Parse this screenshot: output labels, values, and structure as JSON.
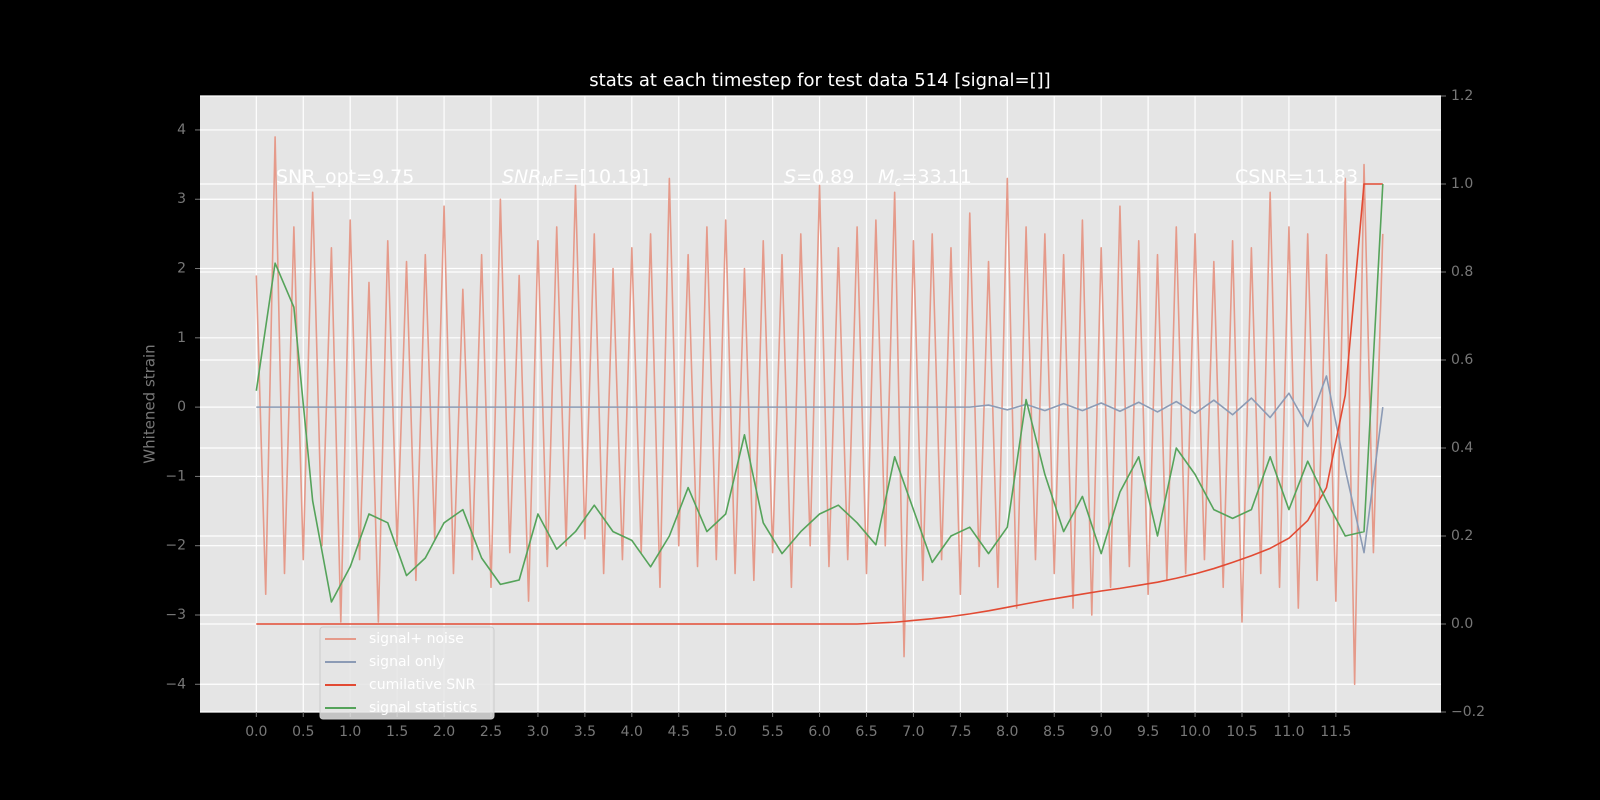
{
  "chart_data": {
    "type": "line",
    "title": "stats at each timestep for test data 514 [signal=[]]",
    "y_label": "Whitened strain",
    "annotations": [
      {
        "text": "SNR_opt=9.75"
      },
      {
        "text": "SNR",
        "sub": "M",
        "rest": "F=[10.19]"
      },
      {
        "text": "S",
        "rest": "=0.89"
      },
      {
        "text": "M",
        "sub": "c",
        "rest": "=33.11"
      },
      {
        "text": "CSNR=11.83"
      }
    ],
    "xlim": [
      -0.6,
      12.62
    ],
    "xticks": [
      {
        "value": 0,
        "label": "0.0"
      },
      0.5,
      {
        "value": 1,
        "label": "1.0"
      },
      1.5,
      {
        "value": 2,
        "label": "2.0"
      },
      2.5,
      {
        "value": 3,
        "label": "3.0"
      },
      3.5,
      {
        "value": 4,
        "label": "4.0"
      },
      4.5,
      {
        "value": 5,
        "label": "5.0"
      },
      5.5,
      {
        "value": 6,
        "label": "6.0"
      },
      6.5,
      {
        "value": 7,
        "label": "7.0"
      },
      7.5,
      {
        "value": 8,
        "label": "8.0"
      },
      8.5,
      {
        "value": 9,
        "label": "9.0"
      },
      9.5,
      {
        "value": 10,
        "label": "10.0"
      },
      10.5,
      {
        "value": 11,
        "label": "11.0"
      },
      11.5
    ],
    "ylim": [
      -4.4,
      4.49
    ],
    "yticks": [
      {
        "value": -4,
        "label": "−4"
      },
      {
        "value": -3,
        "label": "−3"
      },
      {
        "value": -2,
        "label": "−2"
      },
      {
        "value": -1,
        "label": "−1"
      },
      0,
      1,
      2,
      3,
      4
    ],
    "y2lim": [
      -0.2,
      1.2
    ],
    "y2ticks": [
      {
        "value": -0.2,
        "label": "−0.2"
      },
      {
        "value": 0,
        "label": "0.0"
      },
      0.2,
      0.4,
      0.6,
      0.8,
      {
        "value": 1,
        "label": "1.0"
      },
      1.2
    ],
    "grid": true,
    "legend": "lower left",
    "series": [
      {
        "name": "signal+ noise",
        "color": "#e59a8a",
        "x": [
          0,
          0.1,
          0.2,
          0.3,
          0.4,
          0.5,
          0.6,
          0.7,
          0.8,
          0.9,
          1,
          1.1,
          1.2,
          1.3,
          1.4,
          1.5,
          1.6,
          1.7,
          1.8,
          1.9,
          2,
          2.1,
          2.2,
          2.3,
          2.4,
          2.5,
          2.6,
          2.7,
          2.8,
          2.9,
          3,
          3.1,
          3.2,
          3.3,
          3.4,
          3.5,
          3.6,
          3.7,
          3.8,
          3.9,
          4,
          4.1,
          4.2,
          4.3,
          4.4,
          4.5,
          4.6,
          4.7,
          4.8,
          4.9,
          5,
          5.1,
          5.2,
          5.3,
          5.4,
          5.5,
          5.6,
          5.7,
          5.8,
          5.9,
          6,
          6.1,
          6.2,
          6.3,
          6.4,
          6.5,
          6.6,
          6.7,
          6.8,
          6.9,
          7,
          7.1,
          7.2,
          7.3,
          7.4,
          7.5,
          7.6,
          7.7,
          7.8,
          7.9,
          8,
          8.1,
          8.2,
          8.3,
          8.4,
          8.5,
          8.6,
          8.7,
          8.8,
          8.9,
          9,
          9.1,
          9.2,
          9.3,
          9.4,
          9.5,
          9.6,
          9.7,
          9.8,
          9.9,
          10,
          10.1,
          10.2,
          10.3,
          10.4,
          10.5,
          10.6,
          10.7,
          10.8,
          10.9,
          11,
          11.1,
          11.2,
          11.3,
          11.4,
          11.5,
          11.6,
          11.7,
          11.8,
          11.9,
          12
        ],
        "values": [
          1.9,
          -2.7,
          3.9,
          -2.4,
          2.6,
          -2.2,
          3.1,
          -2.0,
          2.3,
          -3.1,
          2.7,
          -2.2,
          1.8,
          -3.1,
          2.4,
          -2.0,
          2.1,
          -2.5,
          2.2,
          -1.9,
          2.9,
          -2.4,
          1.7,
          -2.2,
          2.2,
          -2.6,
          3.0,
          -2.1,
          1.9,
          -2.8,
          2.4,
          -2.3,
          2.6,
          -2.0,
          3.2,
          -1.9,
          2.5,
          -2.4,
          2.0,
          -2.2,
          2.3,
          -2.1,
          2.5,
          -2.6,
          3.3,
          -2.0,
          2.2,
          -2.3,
          2.6,
          -2.2,
          2.7,
          -2.4,
          2.0,
          -2.5,
          2.4,
          -2.1,
          2.2,
          -2.6,
          2.5,
          -2.0,
          3.2,
          -2.3,
          2.3,
          -2.2,
          2.6,
          -2.4,
          2.7,
          -2.0,
          3.1,
          -3.6,
          2.4,
          -2.5,
          2.5,
          -2.2,
          2.3,
          -2.7,
          2.8,
          -2.3,
          2.1,
          -2.6,
          3.3,
          -2.9,
          2.6,
          -2.2,
          2.5,
          -2.4,
          2.2,
          -2.9,
          2.7,
          -3.0,
          2.3,
          -2.6,
          2.9,
          -2.3,
          2.4,
          -2.7,
          2.2,
          -2.5,
          2.6,
          -2.4,
          2.5,
          -2.2,
          2.1,
          -2.6,
          2.4,
          -3.1,
          2.3,
          -2.4,
          3.1,
          -2.6,
          2.6,
          -2.9,
          2.5,
          -2.5,
          2.2,
          -2.8,
          3.3,
          -4.0,
          3.5,
          -2.1,
          2.5
        ]
      },
      {
        "name": "signal only",
        "color": "#8c9bb5",
        "x": [
          0,
          0.2,
          0.4,
          0.6,
          0.8,
          1,
          1.2,
          1.4,
          1.6,
          1.8,
          2,
          2.2,
          2.4,
          2.6,
          2.8,
          3,
          3.2,
          3.4,
          3.6,
          3.8,
          4,
          4.2,
          4.4,
          4.6,
          4.8,
          5,
          5.2,
          5.4,
          5.6,
          5.8,
          6,
          6.2,
          6.4,
          6.6,
          6.8,
          7,
          7.2,
          7.4,
          7.6,
          7.8,
          8,
          8.2,
          8.4,
          8.6,
          8.8,
          9,
          9.2,
          9.4,
          9.6,
          9.8,
          10,
          10.2,
          10.4,
          10.6,
          10.8,
          11,
          11.2,
          11.4,
          11.6,
          11.8,
          12
        ],
        "values": [
          0,
          0,
          0,
          0,
          0,
          0,
          0,
          0,
          0,
          0,
          0,
          0,
          0,
          0,
          0,
          0,
          0,
          0,
          0,
          0,
          0,
          0,
          0,
          0,
          0,
          0,
          0,
          0,
          0,
          0,
          0,
          0,
          0,
          0,
          0,
          0,
          0,
          0,
          0,
          0.03,
          -0.04,
          0.04,
          -0.05,
          0.05,
          -0.05,
          0.06,
          -0.06,
          0.07,
          -0.07,
          0.08,
          -0.09,
          0.1,
          -0.11,
          0.13,
          -0.15,
          0.2,
          -0.28,
          0.45,
          -0.9,
          -2.1,
          0
        ]
      },
      {
        "name": "cumilative SNR",
        "color": "#e24a33",
        "axis": "y2",
        "x": [
          0,
          0.2,
          0.4,
          0.6,
          0.8,
          1,
          1.2,
          1.4,
          1.6,
          1.8,
          2,
          2.2,
          2.4,
          2.6,
          2.8,
          3,
          3.2,
          3.4,
          3.6,
          3.8,
          4,
          4.2,
          4.4,
          4.6,
          4.8,
          5,
          5.2,
          5.4,
          5.6,
          5.8,
          6,
          6.2,
          6.4,
          6.6,
          6.8,
          7,
          7.2,
          7.4,
          7.6,
          7.8,
          8,
          8.2,
          8.4,
          8.6,
          8.8,
          9,
          9.2,
          9.4,
          9.6,
          9.8,
          10,
          10.2,
          10.4,
          10.6,
          10.8,
          11,
          11.2,
          11.4,
          11.6,
          11.8,
          12
        ],
        "values": [
          0,
          0,
          0,
          0,
          0,
          0,
          0,
          0,
          0,
          0,
          0,
          0,
          0,
          0,
          0,
          0,
          0,
          0,
          0,
          0,
          0,
          0,
          0,
          0,
          0,
          0,
          0,
          0,
          0,
          0,
          0,
          0,
          0,
          0.002,
          0.004,
          0.008,
          0.012,
          0.017,
          0.023,
          0.03,
          0.038,
          0.046,
          0.054,
          0.061,
          0.068,
          0.075,
          0.081,
          0.088,
          0.095,
          0.104,
          0.114,
          0.126,
          0.14,
          0.155,
          0.172,
          0.195,
          0.235,
          0.31,
          0.52,
          1.0,
          1.0
        ]
      },
      {
        "name": "signal statistics",
        "color": "#55a35a",
        "axis": "y2",
        "x": [
          0,
          0.2,
          0.4,
          0.6,
          0.8,
          1,
          1.2,
          1.4,
          1.6,
          1.8,
          2,
          2.2,
          2.4,
          2.6,
          2.8,
          3,
          3.2,
          3.4,
          3.6,
          3.8,
          4,
          4.2,
          4.4,
          4.6,
          4.8,
          5,
          5.2,
          5.4,
          5.6,
          5.8,
          6,
          6.2,
          6.4,
          6.6,
          6.8,
          7,
          7.2,
          7.4,
          7.6,
          7.8,
          8,
          8.2,
          8.4,
          8.6,
          8.8,
          9,
          9.2,
          9.4,
          9.6,
          9.8,
          10,
          10.2,
          10.4,
          10.6,
          10.8,
          11,
          11.2,
          11.4,
          11.6,
          11.8,
          12
        ],
        "values": [
          0.53,
          0.82,
          0.72,
          0.28,
          0.05,
          0.13,
          0.25,
          0.23,
          0.11,
          0.15,
          0.23,
          0.26,
          0.15,
          0.09,
          0.1,
          0.25,
          0.17,
          0.21,
          0.27,
          0.21,
          0.19,
          0.13,
          0.2,
          0.31,
          0.21,
          0.25,
          0.43,
          0.23,
          0.16,
          0.21,
          0.25,
          0.27,
          0.23,
          0.18,
          0.38,
          0.26,
          0.14,
          0.2,
          0.22,
          0.16,
          0.22,
          0.51,
          0.34,
          0.21,
          0.29,
          0.16,
          0.3,
          0.38,
          0.2,
          0.4,
          0.34,
          0.26,
          0.24,
          0.26,
          0.38,
          0.26,
          0.37,
          0.28,
          0.2,
          0.21,
          1.0
        ]
      }
    ]
  }
}
